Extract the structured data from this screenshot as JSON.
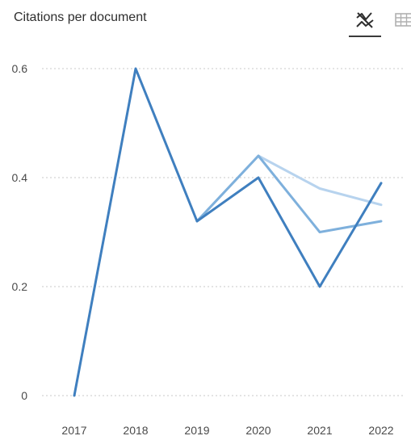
{
  "header": {
    "title": "Citations per document",
    "chart_view_icon": "line-chart-icon",
    "table_view_icon": "table-grid-icon"
  },
  "colors": {
    "series_dark": "#3f7fbf",
    "series_medium": "#7eb0dc",
    "series_light": "#b7d3ee",
    "gridline": "#c8c8c8",
    "tick_text": "#4a4a4a"
  },
  "chart_data": {
    "type": "line",
    "title": "Citations per document",
    "xlabel": "",
    "ylabel": "",
    "categories": [
      "2017",
      "2018",
      "2019",
      "2020",
      "2021",
      "2022"
    ],
    "ylim": [
      0,
      0.6
    ],
    "yticks": [
      0,
      0.2,
      0.4,
      0.6
    ],
    "ytick_labels": [
      "0",
      "0.2",
      "0.4",
      "0.6"
    ],
    "grid": true,
    "legend": "none",
    "series": [
      {
        "color": "#3f7fbf",
        "values": [
          0,
          0.6,
          0.32,
          0.4,
          0.2,
          0.39
        ]
      },
      {
        "color": "#7eb0dc",
        "values": [
          null,
          null,
          0.32,
          0.44,
          0.3,
          0.32
        ]
      },
      {
        "color": "#b7d3ee",
        "values": [
          null,
          null,
          0.32,
          0.44,
          0.38,
          0.35
        ]
      }
    ]
  }
}
